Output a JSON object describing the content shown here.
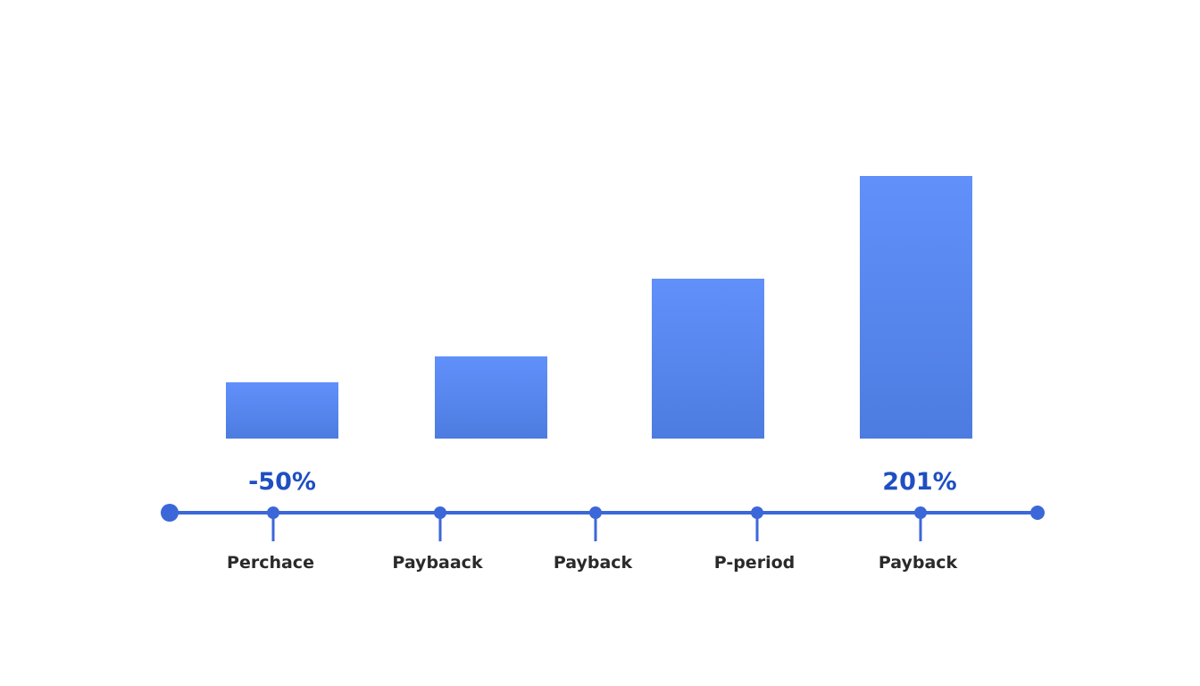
{
  "chart_data": {
    "type": "bar",
    "categories": [
      null,
      null,
      null,
      null
    ],
    "values": [
      63,
      92,
      179,
      294
    ],
    "ylim": [
      0,
      300
    ],
    "color": "#5a88f2",
    "annotations": [
      "-50%",
      "201%"
    ],
    "timeline_labels": [
      "Perchace",
      "Paybaack",
      "Payback",
      "P-period",
      "Payback"
    ]
  }
}
